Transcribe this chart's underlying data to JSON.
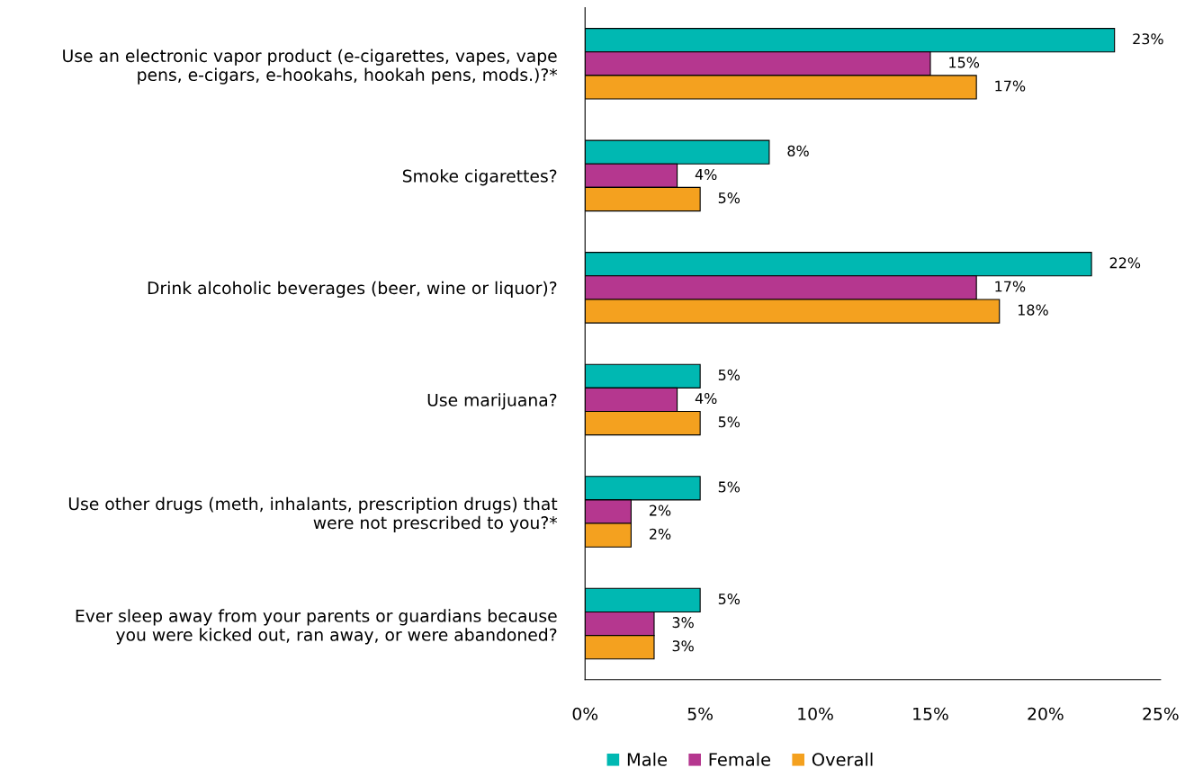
{
  "chart_data": {
    "type": "bar",
    "orientation": "horizontal",
    "categories": [
      "Use an electronic vapor product (e-cigarettes, vapes, vape\npens, e-cigars, e-hookahs, hookah pens, mods.)?*",
      "Smoke cigarettes?",
      "Drink alcoholic beverages (beer, wine or liquor)?",
      "Use marijuana?",
      "Use other drugs (meth, inhalants, prescription drugs) that\nwere not prescribed to you?*",
      "Ever sleep away from your parents or guardians because\nyou were kicked out, ran away, or were abandoned?"
    ],
    "series": [
      {
        "name": "Male",
        "color": "#00b8b2",
        "values": [
          23,
          8,
          22,
          5,
          5,
          5
        ],
        "value_labels": [
          "23%",
          "8%",
          "22%",
          "5%",
          "5%",
          "5%"
        ]
      },
      {
        "name": "Female",
        "color": "#b5378f",
        "values": [
          15,
          4,
          17,
          4,
          2,
          3
        ],
        "value_labels": [
          "15%",
          "4%",
          "17%",
          "4%",
          "2%",
          "3%"
        ]
      },
      {
        "name": "Overall",
        "color": "#f4a11f",
        "values": [
          17,
          5,
          18,
          5,
          2,
          3
        ],
        "value_labels": [
          "17%",
          "5%",
          "18%",
          "5%",
          "2%",
          "3%"
        ]
      }
    ],
    "xlim": [
      0,
      25
    ],
    "xticks": [
      {
        "value": 0,
        "label": "0%"
      },
      {
        "value": 5,
        "label": "5%"
      },
      {
        "value": 10,
        "label": "10%"
      },
      {
        "value": 15,
        "label": "15%"
      },
      {
        "value": 20,
        "label": "20%"
      },
      {
        "value": 25,
        "label": "25%"
      }
    ],
    "grid": false,
    "legend": "bottom"
  }
}
